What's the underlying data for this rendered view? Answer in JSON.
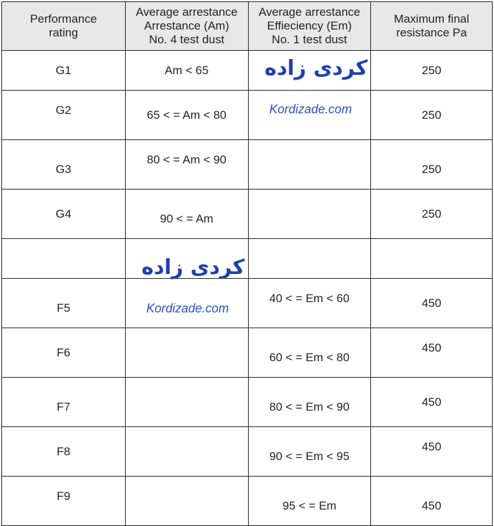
{
  "headers": [
    "Performance rating",
    "Average arrestance Arrestance (Am) No. 4 test dust",
    "Average arrestance Effieciency (Em) No. 1 test dust",
    "Maximum final resistance Pa"
  ],
  "header_lines": {
    "col1": [
      "Performance",
      "rating"
    ],
    "col2": [
      "Average arrestance",
      "Arrestance (Am)",
      "No. 4 test dust"
    ],
    "col3": [
      "Average arrestance",
      "Effieciency (Em)",
      "No. 1 test dust"
    ],
    "col4": [
      "Maximum final",
      "resistance Pa"
    ]
  },
  "rows": [
    {
      "rating": "G1",
      "am": "Am < 65",
      "em": "",
      "pa": "250"
    },
    {
      "rating": "G2",
      "am": "65 < =  Am < 80",
      "em": "",
      "pa": "250"
    },
    {
      "rating": "G3",
      "am": "80 < =  Am < 90",
      "em": "",
      "pa": "250"
    },
    {
      "rating": "G4",
      "am": "90 < =  Am",
      "em": "",
      "pa": "250"
    },
    {
      "rating": "",
      "am": "",
      "em": "",
      "pa": ""
    },
    {
      "rating": "F5",
      "am": "",
      "em": "40 < = Em < 60",
      "pa": "450"
    },
    {
      "rating": "F6",
      "am": "",
      "em": "60 < = Em < 80",
      "pa": "450"
    },
    {
      "rating": "F7",
      "am": "",
      "em": "80 < = Em < 90",
      "pa": "450"
    },
    {
      "rating": "F8",
      "am": "",
      "em": "90 < = Em < 95",
      "pa": "450"
    },
    {
      "rating": "F9",
      "am": "",
      "em": "95 < = Em",
      "pa": "450"
    }
  ],
  "watermark": {
    "fa": "کردی زاده",
    "en": "Kordizade.com"
  }
}
